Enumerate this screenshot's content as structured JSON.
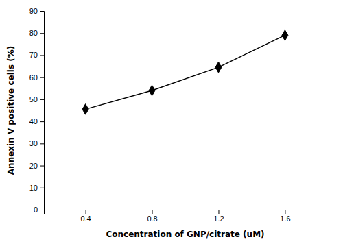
{
  "chart_data": {
    "type": "line",
    "x": [
      0.4,
      0.8,
      1.2,
      1.6
    ],
    "values": [
      45.5,
      54.0,
      64.5,
      79.0
    ],
    "xlabel": "Concentration of GNP/citrate (uM)",
    "ylabel": "Annexin V positive cells (%)",
    "xlim": [
      0.15,
      1.85
    ],
    "ylim": [
      0,
      90
    ],
    "xticks": [
      0.4,
      0.8,
      1.2,
      1.6
    ],
    "yticks": [
      0,
      10,
      20,
      30,
      40,
      50,
      60,
      70,
      80,
      90
    ],
    "color": "#000000",
    "marker": "diamond"
  }
}
